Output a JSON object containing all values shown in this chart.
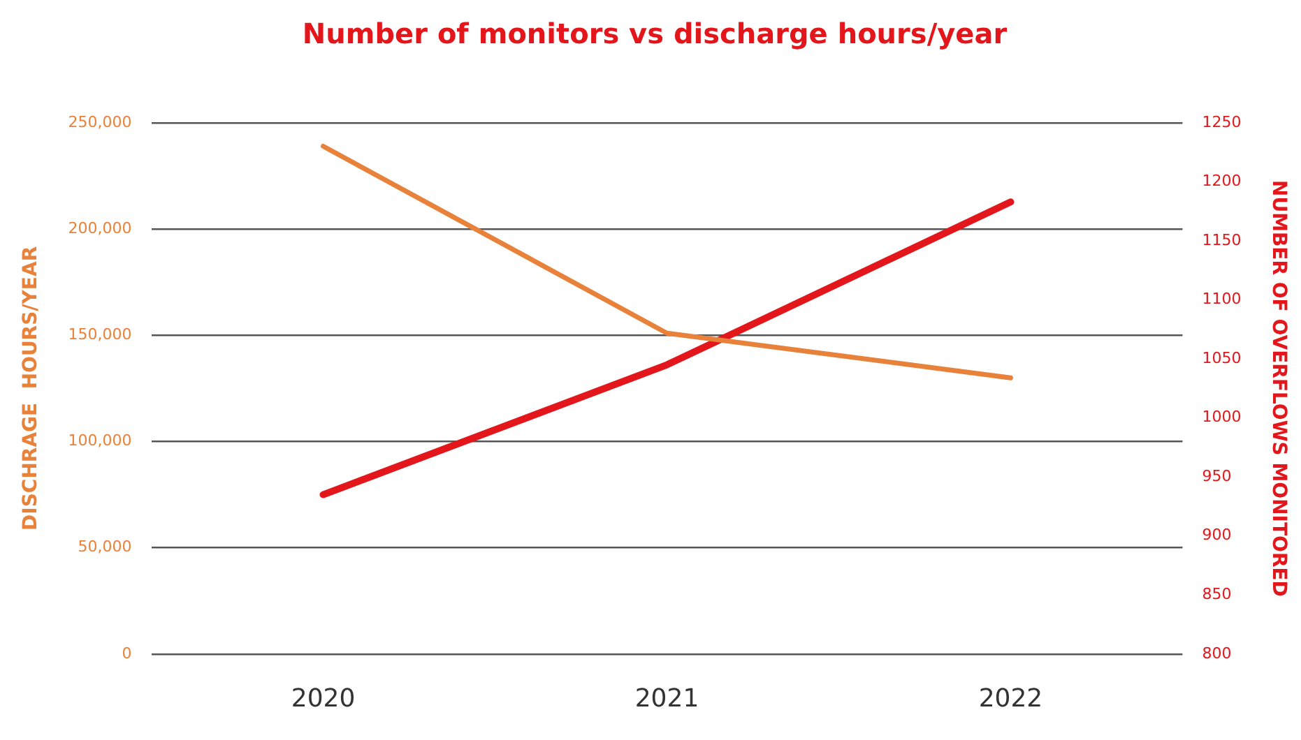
{
  "chart_data": {
    "type": "line",
    "title": "Number of monitors vs discharge hours/year",
    "categories": [
      "2020",
      "2021",
      "2022"
    ],
    "series": [
      {
        "color": "#e8823a",
        "values": [
          239000,
          151000,
          130000
        ]
      },
      {
        "color": "#e3161b",
        "values": [
          935,
          1045,
          1183
        ],
        "axis": "y2"
      }
    ],
    "ylabel": "DISCHRAGE  HOURS/YEAR",
    "y2label": "NUMBER OF OVERFLOWS MONITORED",
    "ylim": [
      0,
      250000
    ],
    "yticks": [
      {
        "value": 0,
        "label": "0"
      },
      {
        "value": 50000,
        "label": "50,000"
      },
      {
        "value": 100000,
        "label": "100,000"
      },
      {
        "value": 150000,
        "label": "150,000"
      },
      {
        "value": 200000,
        "label": "200,000"
      },
      {
        "value": 250000,
        "label": "250,000"
      }
    ],
    "y2lim": [
      800,
      1250
    ],
    "y2ticks": [
      800,
      850,
      900,
      950,
      1000,
      1050,
      1100,
      1150,
      1200,
      1250
    ],
    "grid": "y",
    "legend": false,
    "marker": "none",
    "line_style": "solid"
  }
}
